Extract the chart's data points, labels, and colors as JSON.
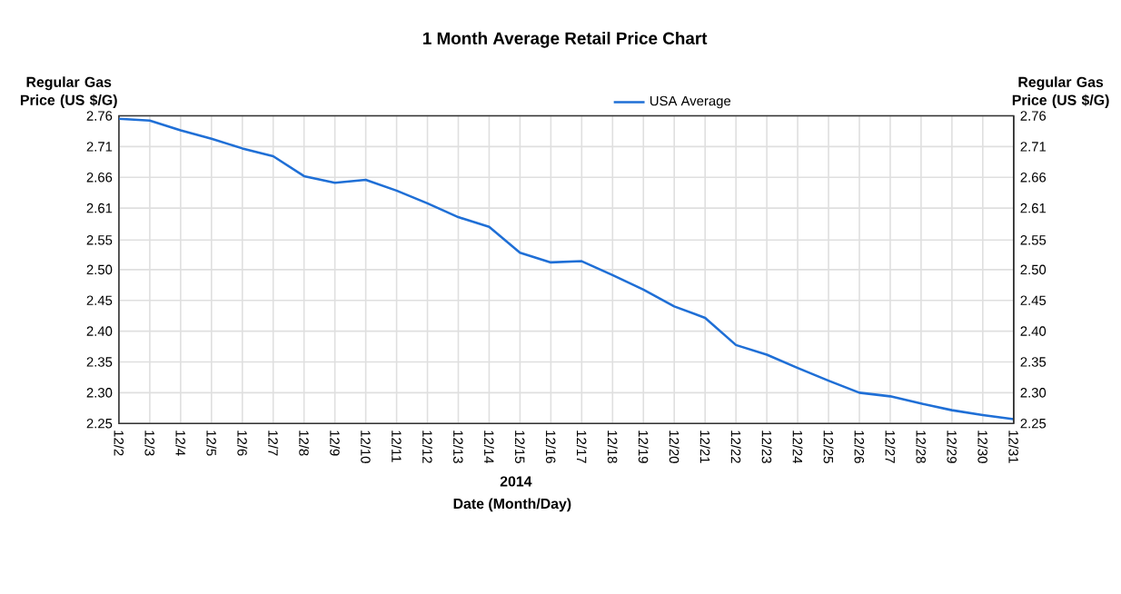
{
  "chart_data": {
    "type": "line",
    "title": "1 Month Average Retail Price Chart",
    "xlabel": "Date (Month/Day)",
    "ylabel": "Regular Gas Price (US $/G)",
    "y2label": "Regular Gas Price (US $/G)",
    "annotations": [
      "2014"
    ],
    "categories": [
      "12/2",
      "12/3",
      "12/4",
      "12/5",
      "12/6",
      "12/7",
      "12/8",
      "12/9",
      "12/10",
      "12/11",
      "12/12",
      "12/13",
      "12/14",
      "12/15",
      "12/16",
      "12/17",
      "12/18",
      "12/19",
      "12/20",
      "12/21",
      "12/22",
      "12/23",
      "12/24",
      "12/25",
      "12/26",
      "12/27",
      "12/28",
      "12/29",
      "12/30",
      "12/31"
    ],
    "series": [
      {
        "name": "USA Average",
        "color": "#1f6fd6",
        "values": [
          2.755,
          2.752,
          2.736,
          2.722,
          2.706,
          2.693,
          2.66,
          2.649,
          2.654,
          2.636,
          2.615,
          2.592,
          2.576,
          2.533,
          2.517,
          2.519,
          2.496,
          2.472,
          2.444,
          2.425,
          2.38,
          2.364,
          2.342,
          2.321,
          2.301,
          2.295,
          2.283,
          2.272,
          2.264,
          2.257
        ]
      }
    ],
    "ylim": [
      2.25,
      2.76
    ],
    "yticks": [
      2.25,
      {
        "value": 2.301,
        "label": "2.30"
      },
      {
        "value": 2.352,
        "label": "2.35"
      },
      {
        "value": 2.403,
        "label": "2.40"
      },
      {
        "value": 2.454,
        "label": "2.45"
      },
      {
        "value": 2.505,
        "label": "2.50"
      },
      {
        "value": 2.554,
        "label": "2.55"
      },
      {
        "value": 2.607,
        "label": "2.61"
      },
      {
        "value": 2.658,
        "label": "2.66"
      },
      {
        "value": 2.709,
        "label": "2.71"
      },
      2.76
    ],
    "y2lim": [
      2.25,
      2.76
    ],
    "y2ticks": [
      2.25,
      {
        "value": 2.301,
        "label": "2.30"
      },
      {
        "value": 2.352,
        "label": "2.35"
      },
      {
        "value": 2.403,
        "label": "2.40"
      },
      {
        "value": 2.454,
        "label": "2.45"
      },
      {
        "value": 2.505,
        "label": "2.50"
      },
      {
        "value": 2.554,
        "label": "2.55"
      },
      {
        "value": 2.607,
        "label": "2.61"
      },
      {
        "value": 2.658,
        "label": "2.66"
      },
      {
        "value": 2.709,
        "label": "2.71"
      },
      2.76
    ],
    "grid": true,
    "legend": "top",
    "marker": "none",
    "line_style": "solid"
  }
}
